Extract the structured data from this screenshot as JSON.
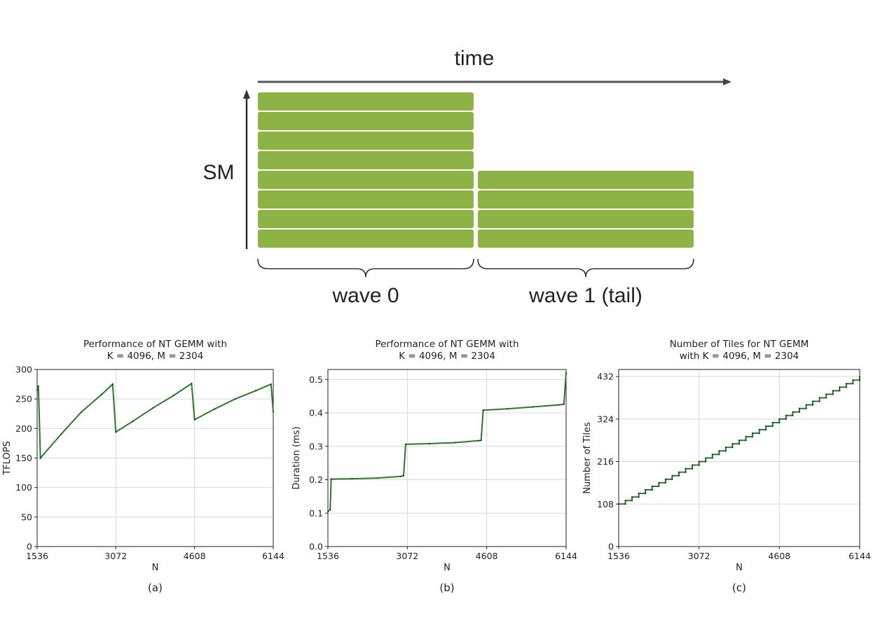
{
  "diagram": {
    "time_label": "time",
    "sm_label": "SM",
    "wave0_label": "wave 0",
    "wave1_label": "wave 1 (tail)",
    "wave0_rows": 8,
    "wave1_rows": 4,
    "bar_color": "#8db346"
  },
  "chart_data": [
    {
      "type": "line",
      "title": [
        "Performance of NT GEMM with",
        "K = 4096, M = 2304"
      ],
      "xlabel": "N",
      "ylabel": "TFLOPS",
      "caption": "(a)",
      "xlim": [
        1536,
        6144
      ],
      "ylim": [
        0,
        300
      ],
      "xticks": [
        1536,
        3072,
        4608,
        6144
      ],
      "yticks": [
        0,
        50,
        100,
        150,
        200,
        250,
        300
      ],
      "grid": true,
      "line_color": "#2a7a2a",
      "points": [
        [
          1536,
          265
        ],
        [
          1560,
          272
        ],
        [
          1600,
          150
        ],
        [
          2000,
          190
        ],
        [
          2400,
          228
        ],
        [
          2800,
          258
        ],
        [
          3010,
          275
        ],
        [
          3072,
          194
        ],
        [
          3400,
          212
        ],
        [
          3800,
          235
        ],
        [
          4200,
          256
        ],
        [
          4550,
          276
        ],
        [
          4608,
          215
        ],
        [
          5000,
          233
        ],
        [
          5400,
          250
        ],
        [
          5800,
          264
        ],
        [
          6100,
          275
        ],
        [
          6144,
          228
        ]
      ]
    },
    {
      "type": "line",
      "title": [
        "Performance of NT GEMM with",
        "K = 4096, M = 2304"
      ],
      "xlabel": "N",
      "ylabel": "Duration (ms)",
      "caption": "(b)",
      "xlim": [
        1536,
        6144
      ],
      "ylim": [
        0,
        0.53
      ],
      "xticks": [
        1536,
        3072,
        4608,
        6144
      ],
      "yticks": [
        0.0,
        0.1,
        0.2,
        0.3,
        0.4,
        0.5
      ],
      "ytick_labels": [
        "0.0",
        "0.1",
        "0.2",
        "0.3",
        "0.4",
        "0.5"
      ],
      "grid": true,
      "line_color": "#2a7a2a",
      "points": [
        [
          1536,
          0.105
        ],
        [
          1580,
          0.11
        ],
        [
          1600,
          0.202
        ],
        [
          2000,
          0.203
        ],
        [
          2500,
          0.205
        ],
        [
          2950,
          0.21
        ],
        [
          3000,
          0.212
        ],
        [
          3040,
          0.306
        ],
        [
          3500,
          0.308
        ],
        [
          4000,
          0.311
        ],
        [
          4450,
          0.317
        ],
        [
          4500,
          0.318
        ],
        [
          4540,
          0.408
        ],
        [
          5000,
          0.412
        ],
        [
          5500,
          0.418
        ],
        [
          6000,
          0.424
        ],
        [
          6100,
          0.426
        ],
        [
          6144,
          0.52
        ]
      ]
    },
    {
      "type": "line",
      "title": [
        "Number of Tiles for NT GEMM",
        "with K = 4096, M = 2304"
      ],
      "xlabel": "N",
      "ylabel": "Number of Tiles",
      "caption": "(c)",
      "xlim": [
        1536,
        6144
      ],
      "ylim": [
        0,
        450
      ],
      "xticks": [
        1536,
        3072,
        4608,
        6144
      ],
      "yticks": [
        0,
        108,
        216,
        324,
        432
      ],
      "grid": true,
      "line_color": "#2a7a2a",
      "points": [
        [
          1536,
          108
        ],
        [
          6144,
          432
        ]
      ],
      "step": 128
    }
  ]
}
